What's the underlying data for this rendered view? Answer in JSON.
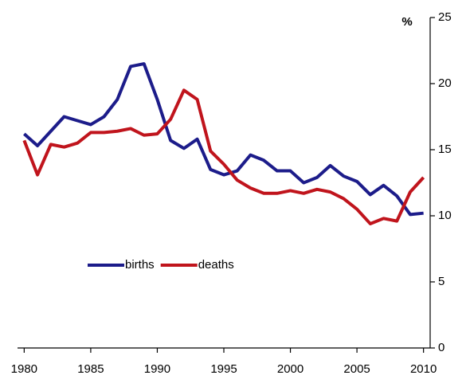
{
  "chart_data": {
    "type": "line",
    "y_axis_label": "%",
    "x": [
      1980,
      1981,
      1982,
      1983,
      1984,
      1985,
      1986,
      1987,
      1988,
      1989,
      1990,
      1991,
      1992,
      1993,
      1994,
      1995,
      1996,
      1997,
      1998,
      1999,
      2000,
      2001,
      2002,
      2003,
      2004,
      2005,
      2006,
      2007,
      2008,
      2009,
      2010
    ],
    "series": [
      {
        "name": "births",
        "color": "#1c1c8a",
        "values": [
          16.2,
          15.3,
          16.4,
          17.5,
          17.2,
          16.9,
          17.5,
          18.8,
          21.3,
          21.5,
          18.8,
          15.7,
          15.1,
          15.8,
          13.5,
          13.1,
          13.4,
          14.6,
          14.2,
          13.4,
          13.4,
          12.5,
          12.9,
          13.8,
          13.0,
          12.6,
          11.6,
          12.3,
          11.5,
          10.1,
          10.2
        ]
      },
      {
        "name": "deaths",
        "color": "#c0141c",
        "values": [
          15.7,
          13.1,
          15.4,
          15.2,
          15.5,
          16.3,
          16.3,
          16.4,
          16.6,
          16.1,
          16.2,
          17.3,
          19.5,
          18.8,
          14.9,
          13.9,
          12.7,
          12.1,
          11.7,
          11.7,
          11.9,
          11.7,
          12.0,
          11.8,
          11.3,
          10.5,
          9.4,
          9.8,
          9.6,
          11.8,
          12.9
        ]
      }
    ],
    "xlim": [
      1979.5,
      2010.5
    ],
    "xticks": [
      1980,
      1985,
      1990,
      1995,
      2000,
      2005,
      2010
    ],
    "ylim": [
      0,
      25
    ],
    "yticks": [
      0,
      5,
      10,
      15,
      20,
      25
    ],
    "y_axis_side": "right",
    "legend_position": "center-left",
    "grid": false
  }
}
